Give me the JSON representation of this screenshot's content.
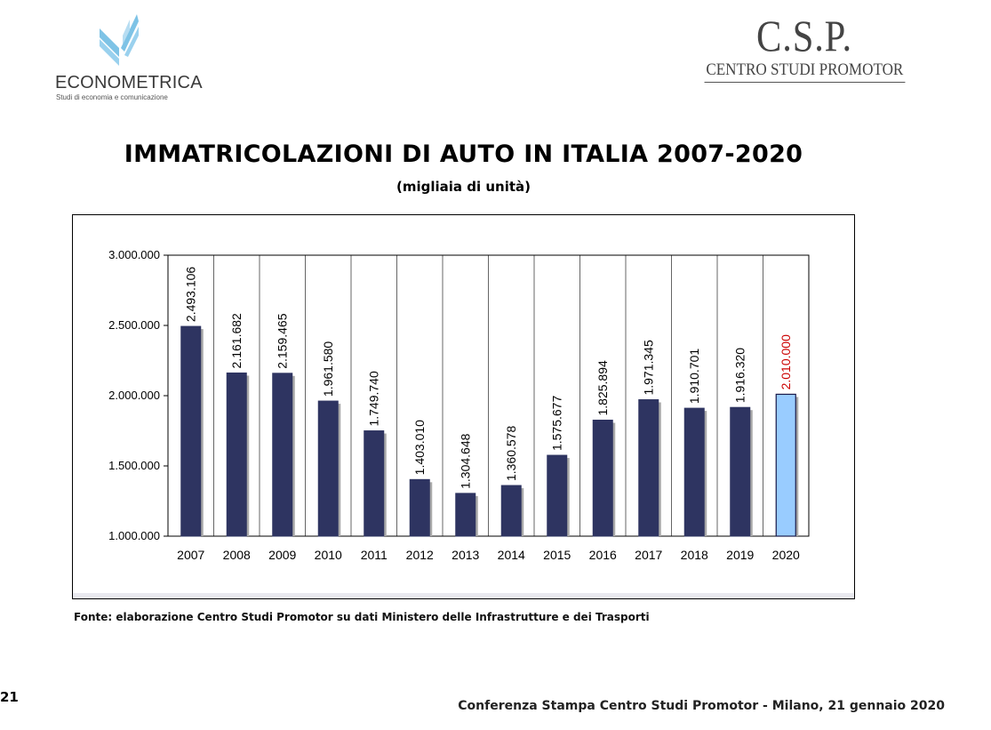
{
  "logos": {
    "econometrica_name": "ECONOMETRICA",
    "econometrica_tagline": "Studi di economia e comunicazione",
    "csp_mark": "C.S.P.",
    "csp_name": "CENTRO STUDI PROMOTOR"
  },
  "header": {
    "title": "IMMATRICOLAZIONI DI AUTO IN ITALIA 2007-2020",
    "subtitle": "(migliaia di unità)"
  },
  "source_note": "Fonte: elaborazione Centro Studi Promotor su dati Ministero delle Infrastrutture e dei Trasporti",
  "page_number": "21",
  "footer": "Conferenza Stampa Centro Studi Promotor - Milano, 21 gennaio 2020",
  "colors": {
    "bar": "#2e3461",
    "highlight_bar": "#99ccff",
    "highlight_label": "#cc0000",
    "bar_shadow": "#a9a9a9"
  },
  "chart_data": {
    "type": "bar",
    "title": "",
    "xlabel": "",
    "ylabel": "",
    "categories": [
      "2007",
      "2008",
      "2009",
      "2010",
      "2011",
      "2012",
      "2013",
      "2014",
      "2015",
      "2016",
      "2017",
      "2018",
      "2019",
      "2020"
    ],
    "values": [
      2493106,
      2161682,
      2159465,
      1961580,
      1749740,
      1403010,
      1304648,
      1360578,
      1575677,
      1825894,
      1971345,
      1910701,
      1916320,
      2010000
    ],
    "data_labels": [
      "2.493.106",
      "2.161.682",
      "2.159.465",
      "1.961.580",
      "1.749.740",
      "1.403.010",
      "1.304.648",
      "1.360.578",
      "1.575.677",
      "1.825.894",
      "1.971.345",
      "1.910.701",
      "1.916.320",
      "2.010.000"
    ],
    "highlight_index": 13,
    "ylim": [
      1000000,
      3000000
    ],
    "yticks": [
      1000000,
      1500000,
      2000000,
      2500000,
      3000000
    ],
    "ytick_labels": [
      "1.000.000",
      "1.500.000",
      "2.000.000",
      "2.500.000",
      "3.000.000"
    ],
    "grid": "vertical",
    "legend": "none"
  }
}
